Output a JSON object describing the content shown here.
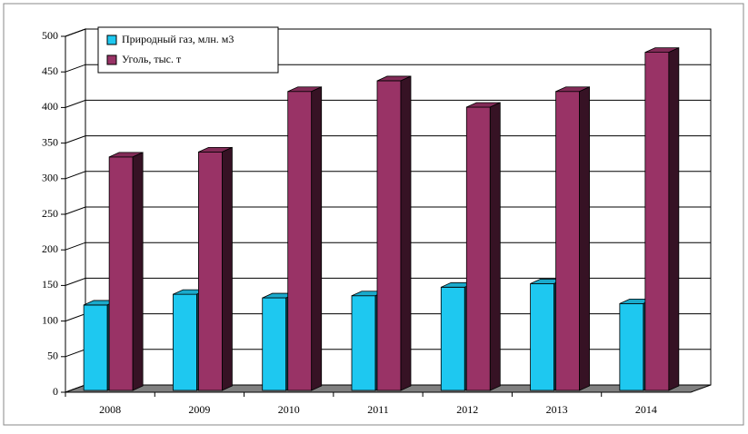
{
  "chart_data": {
    "type": "bar3d",
    "categories": [
      "2008",
      "2009",
      "2010",
      "2011",
      "2012",
      "2013",
      "2014"
    ],
    "series": [
      {
        "name": "Природный газ, млн. м3",
        "color": "#1ec8f0",
        "values": [
          120,
          135,
          130,
          133,
          145,
          150,
          122
        ]
      },
      {
        "name": "Уголь, тыс. т",
        "color": "#993366",
        "values": [
          328,
          335,
          420,
          435,
          398,
          420,
          475
        ]
      }
    ],
    "ylim": [
      0,
      500
    ],
    "yticks": [
      0,
      50,
      100,
      150,
      200,
      250,
      300,
      350,
      400,
      450,
      500
    ],
    "grid": true,
    "legend": "top-left"
  }
}
